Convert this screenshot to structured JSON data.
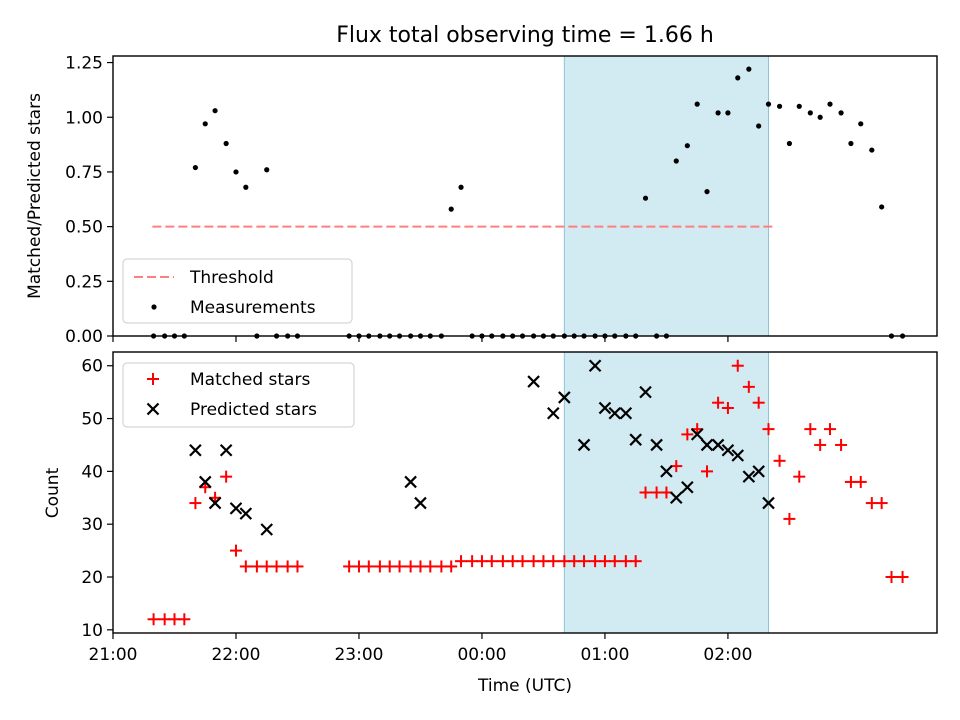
{
  "title": "Flux total observing time = 1.66 h",
  "colors": {
    "threshold": "#ff7f7f",
    "matched": "#ff0000",
    "predicted": "#000000",
    "measurement": "#000000",
    "shade": "#add8e6"
  },
  "chart_data": [
    {
      "type": "scatter",
      "ylabel": "Matched/Predicted stars",
      "ylim": [
        0,
        1.28
      ],
      "yticks": [
        0,
        0.25,
        0.5,
        0.75,
        1.0,
        1.25
      ],
      "ytick_labels": [
        "0.00",
        "0.25",
        "0.50",
        "0.75",
        "1.00",
        "1.25"
      ],
      "xlim_hours": [
        -3.0,
        3.7
      ],
      "threshold": {
        "value": 0.5,
        "x_range": [
          -2.68,
          2.38
        ]
      },
      "shaded_span_hours": [
        0.67,
        2.33
      ],
      "legend": {
        "placement": "lower-left",
        "entries": [
          "Threshold",
          "Measurements"
        ]
      },
      "series": [
        {
          "name": "Measurements",
          "x": [
            -2.67,
            -2.58,
            -2.5,
            -2.42,
            -2.33,
            -2.25,
            -2.17,
            -2.08,
            -2.0,
            -1.92,
            -1.83,
            -1.75,
            -1.67,
            -1.58,
            -1.5,
            -1.08,
            -1.0,
            -0.92,
            -0.83,
            -0.75,
            -0.67,
            -0.58,
            -0.5,
            -0.42,
            -0.33,
            -0.25,
            -0.17,
            -0.08,
            0.0,
            0.08,
            0.17,
            0.25,
            0.33,
            0.42,
            0.5,
            0.58,
            0.67,
            0.75,
            0.83,
            0.92,
            1.0,
            1.08,
            1.17,
            1.25,
            1.33,
            1.42,
            1.5,
            1.58,
            1.67,
            1.75,
            1.83,
            1.92,
            2.0,
            2.08,
            2.17,
            2.25,
            2.33,
            2.42,
            2.5,
            2.58,
            2.67,
            2.75,
            2.83,
            2.92,
            3.0,
            3.08,
            3.17,
            3.25,
            3.33,
            3.42
          ],
          "y": [
            0,
            0,
            0,
            0,
            0.77,
            0.97,
            1.03,
            0.88,
            0.75,
            0.68,
            0,
            0.76,
            0,
            0,
            0,
            0,
            0,
            0,
            0,
            0,
            0,
            0,
            0,
            0,
            0,
            0.58,
            0.68,
            0,
            0,
            0,
            0,
            0,
            0,
            0,
            0,
            0,
            0,
            0,
            0,
            0,
            0,
            0,
            0,
            0,
            0.63,
            0,
            0,
            0.8,
            0.87,
            1.06,
            0.66,
            1.02,
            1.02,
            1.18,
            1.22,
            0.96,
            1.06,
            1.05,
            0.88,
            1.05,
            1.02,
            1.0,
            1.06,
            1.02,
            0.88,
            0.97,
            0.85,
            0.59,
            0,
            0
          ]
        }
      ]
    },
    {
      "type": "scatter",
      "xlabel": "Time (UTC)",
      "ylabel": "Count",
      "ylim": [
        9.4,
        62.6
      ],
      "yticks": [
        10,
        20,
        30,
        40,
        50,
        60
      ],
      "xticks": [
        {
          "hour": -3,
          "label": "21:00"
        },
        {
          "hour": -2,
          "label": "22:00"
        },
        {
          "hour": -1,
          "label": "23:00"
        },
        {
          "hour": 0,
          "label": "00:00"
        },
        {
          "hour": 1,
          "label": "01:00"
        },
        {
          "hour": 2,
          "label": "02:00"
        }
      ],
      "shaded_span_hours": [
        0.67,
        2.33
      ],
      "legend": {
        "placement": "top-left",
        "entries": [
          "Matched stars",
          "Predicted stars"
        ]
      },
      "series": [
        {
          "name": "Matched stars",
          "marker": "+",
          "x": [
            -2.67,
            -2.58,
            -2.5,
            -2.42,
            -2.33,
            -2.25,
            -2.17,
            -2.08,
            -2.0,
            -1.92,
            -1.83,
            -1.75,
            -1.67,
            -1.58,
            -1.5,
            -1.08,
            -1.0,
            -0.92,
            -0.83,
            -0.75,
            -0.67,
            -0.58,
            -0.5,
            -0.42,
            -0.33,
            -0.25,
            -0.17,
            -0.08,
            0.0,
            0.08,
            0.17,
            0.25,
            0.33,
            0.42,
            0.5,
            0.58,
            0.67,
            0.75,
            0.83,
            0.92,
            1.0,
            1.08,
            1.17,
            1.25,
            1.33,
            1.42,
            1.5,
            1.58,
            1.67,
            1.75,
            1.83,
            1.92,
            2.0,
            2.08,
            2.17,
            2.25,
            2.33,
            2.42,
            2.5,
            2.58,
            2.67,
            2.75,
            2.83,
            2.92,
            3.0,
            3.08,
            3.17,
            3.25,
            3.33,
            3.42
          ],
          "y": [
            12,
            12,
            12,
            12,
            34,
            37,
            35,
            39,
            25,
            22,
            22,
            22,
            22,
            22,
            22,
            22,
            22,
            22,
            22,
            22,
            22,
            22,
            22,
            22,
            22,
            22,
            23,
            23,
            23,
            23,
            23,
            23,
            23,
            23,
            23,
            23,
            23,
            23,
            23,
            23,
            23,
            23,
            23,
            23,
            36,
            36,
            36,
            41,
            47,
            48,
            40,
            53,
            52,
            60,
            56,
            53,
            48,
            42,
            31,
            39,
            48,
            45,
            48,
            45,
            38,
            38,
            34,
            34,
            20,
            20
          ]
        },
        {
          "name": "Predicted stars",
          "marker": "x",
          "x": [
            -2.33,
            -2.25,
            -2.17,
            -2.08,
            -2.0,
            -1.92,
            -1.75,
            -0.58,
            -0.5,
            0.42,
            0.58,
            0.67,
            0.83,
            0.92,
            1.0,
            1.08,
            1.17,
            1.25,
            1.33,
            1.42,
            1.5,
            1.58,
            1.67,
            1.75,
            1.83,
            1.92,
            2.0,
            2.08,
            2.17,
            2.25,
            2.33
          ],
          "y": [
            44,
            38,
            34,
            44,
            33,
            32,
            29,
            38,
            34,
            57,
            51,
            54,
            45,
            60,
            52,
            51,
            51,
            46,
            55,
            45,
            40,
            35,
            37,
            47,
            45,
            45,
            44,
            43,
            39,
            40,
            34
          ]
        }
      ]
    }
  ]
}
